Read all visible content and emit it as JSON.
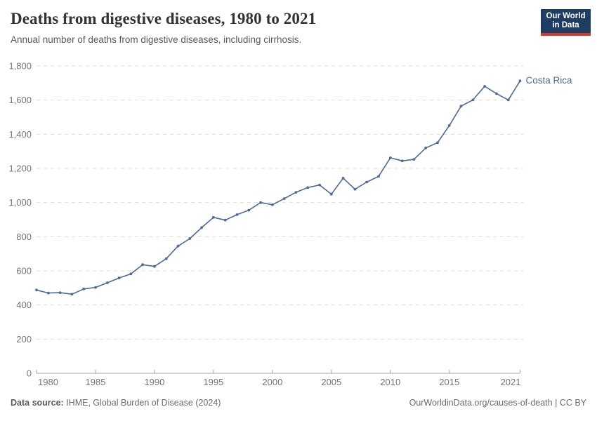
{
  "header": {
    "title": "Deaths from digestive diseases, 1980 to 2021",
    "subtitle": "Annual number of deaths from digestive diseases, including cirrhosis."
  },
  "logo": {
    "line1": "Our World",
    "line2": "in Data",
    "background_color": "#1d3d63",
    "accent_color": "#d6382b"
  },
  "chart_data": {
    "type": "line",
    "title": "Deaths from digestive diseases, 1980 to 2021",
    "subtitle": "Annual number of deaths from digestive diseases, including cirrhosis.",
    "xlabel": "",
    "ylabel": "",
    "xlim": [
      1980,
      2021
    ],
    "ylim": [
      0,
      1800
    ],
    "grid": "horizontal-dashed",
    "legend_position": "end-of-line-label",
    "x_tick_labels": [
      "1980",
      "1985",
      "1990",
      "1995",
      "2000",
      "2005",
      "2010",
      "2015",
      "2021"
    ],
    "x_tick_years": [
      1980,
      1985,
      1990,
      1995,
      2000,
      2005,
      2010,
      2015,
      2021
    ],
    "y_ticks": [
      0,
      200,
      400,
      600,
      800,
      1000,
      1200,
      1400,
      1600,
      1800
    ],
    "y_tick_labels": [
      "0",
      "200",
      "400",
      "600",
      "800",
      "1,000",
      "1,200",
      "1,400",
      "1,600",
      "1,800"
    ],
    "x": [
      1980,
      1981,
      1982,
      1983,
      1984,
      1985,
      1986,
      1987,
      1988,
      1989,
      1990,
      1991,
      1992,
      1993,
      1994,
      1995,
      1996,
      1997,
      1998,
      1999,
      2000,
      2001,
      2002,
      2003,
      2004,
      2005,
      2006,
      2007,
      2008,
      2009,
      2010,
      2011,
      2012,
      2013,
      2014,
      2015,
      2016,
      2017,
      2018,
      2019,
      2020,
      2021
    ],
    "series": [
      {
        "name": "Costa Rica",
        "color": "#4C6A9C",
        "values": [
          488,
          470,
          472,
          463,
          494,
          503,
          530,
          558,
          582,
          636,
          626,
          671,
          745,
          789,
          853,
          913,
          897,
          929,
          955,
          1000,
          987,
          1023,
          1060,
          1088,
          1103,
          1049,
          1143,
          1078,
          1120,
          1153,
          1262,
          1244,
          1253,
          1320,
          1351,
          1451,
          1565,
          1601,
          1681,
          1638,
          1601,
          1713
        ]
      }
    ]
  },
  "colors": {
    "line": "#4C6A9C",
    "gridline": "#dcdcdc",
    "axis": "#a5a5a5",
    "tick_label": "#767676"
  },
  "footer": {
    "source_label": "Data source:",
    "source_text": " IHME, Global Burden of Disease (2024)",
    "credit": "OurWorldinData.org/causes-of-death | CC BY"
  }
}
